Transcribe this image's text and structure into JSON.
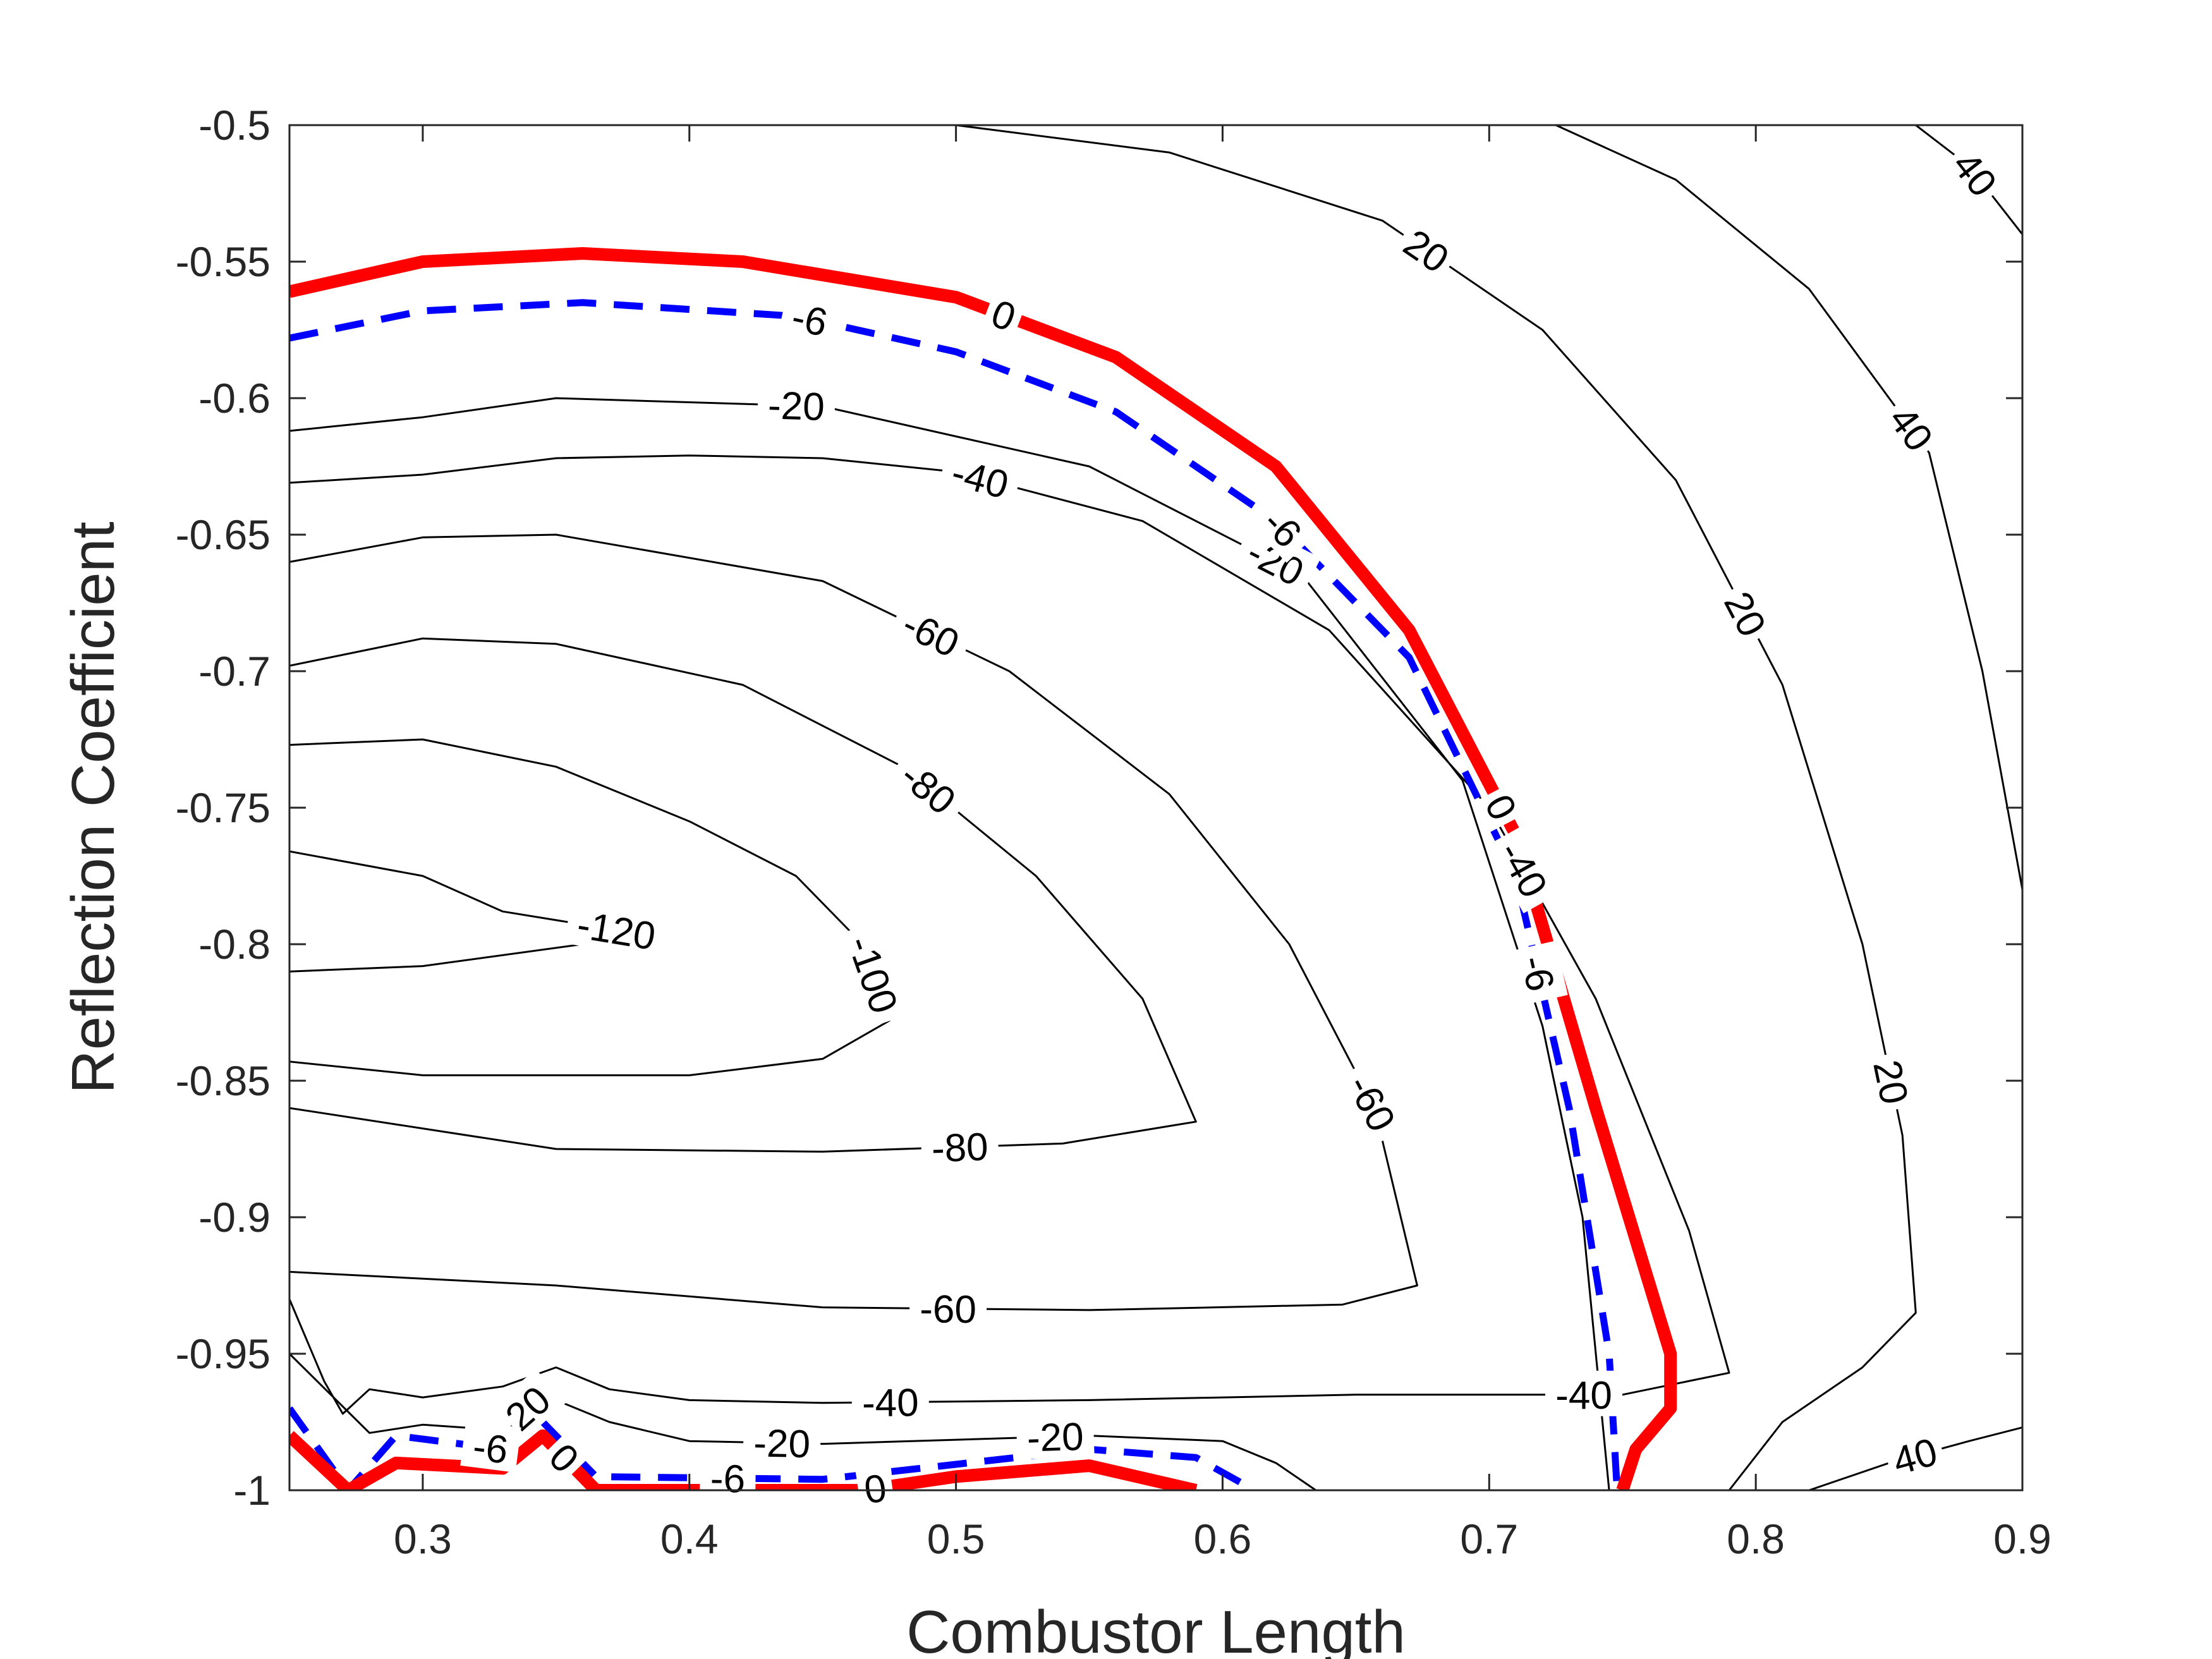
{
  "chart_data": {
    "type": "contour",
    "xlabel": "Combustor Length",
    "ylabel": "Reflection Coefficient",
    "xlim": [
      0.25,
      0.9
    ],
    "ylim": [
      -1,
      -0.5
    ],
    "xticks": [
      "0.3",
      "0.4",
      "0.5",
      "0.6",
      "0.7",
      "0.8",
      "0.9"
    ],
    "yticks": [
      "-0.5",
      "-0.55",
      "-0.6",
      "-0.65",
      "-0.7",
      "-0.75",
      "-0.8",
      "-0.85",
      "-0.9",
      "-0.95",
      "-1"
    ],
    "grid": false,
    "colors": {
      "default": "#000000",
      "zero": "#ff0000",
      "minus6": "#0000ff"
    },
    "contours": [
      {
        "level": -120,
        "style": "thin",
        "labels": [
          "-120"
        ],
        "points": [
          [
            0.25,
            -0.766
          ],
          [
            0.3,
            -0.775
          ],
          [
            0.33,
            -0.788
          ],
          [
            0.374,
            -0.795
          ],
          [
            0.36,
            -0.8
          ],
          [
            0.3,
            -0.808
          ],
          [
            0.25,
            -0.81
          ]
        ]
      },
      {
        "level": -100,
        "style": "thin",
        "labels": [
          "-100"
        ],
        "points": [
          [
            0.25,
            -0.727
          ],
          [
            0.3,
            -0.725
          ],
          [
            0.35,
            -0.735
          ],
          [
            0.4,
            -0.755
          ],
          [
            0.44,
            -0.775
          ],
          [
            0.465,
            -0.8
          ],
          [
            0.475,
            -0.828
          ],
          [
            0.45,
            -0.842
          ],
          [
            0.4,
            -0.848
          ],
          [
            0.3,
            -0.848
          ],
          [
            0.25,
            -0.843
          ]
        ]
      },
      {
        "level": -80,
        "style": "thin",
        "labels": [
          "-80",
          "-80"
        ],
        "points": [
          [
            0.25,
            -0.698
          ],
          [
            0.3,
            -0.688
          ],
          [
            0.35,
            -0.69
          ],
          [
            0.42,
            -0.705
          ],
          [
            0.48,
            -0.735
          ],
          [
            0.53,
            -0.775
          ],
          [
            0.57,
            -0.82
          ],
          [
            0.59,
            -0.865
          ],
          [
            0.54,
            -0.873
          ],
          [
            0.45,
            -0.876
          ],
          [
            0.35,
            -0.875
          ],
          [
            0.25,
            -0.86
          ]
        ]
      },
      {
        "level": -60,
        "style": "thin",
        "labels": [
          "-60",
          "-60",
          "-60"
        ],
        "points": [
          [
            0.25,
            -0.66
          ],
          [
            0.3,
            -0.651
          ],
          [
            0.35,
            -0.65
          ],
          [
            0.45,
            -0.667
          ],
          [
            0.52,
            -0.7
          ],
          [
            0.58,
            -0.745
          ],
          [
            0.625,
            -0.8
          ],
          [
            0.657,
            -0.86
          ],
          [
            0.673,
            -0.925
          ],
          [
            0.645,
            -0.932
          ],
          [
            0.55,
            -0.934
          ],
          [
            0.45,
            -0.933
          ],
          [
            0.35,
            -0.925
          ],
          [
            0.25,
            -0.92
          ]
        ]
      },
      {
        "level": -40,
        "style": "thin",
        "labels": [
          "-40",
          "-40",
          "-40",
          "-40"
        ],
        "points": [
          [
            0.25,
            -0.93
          ],
          [
            0.263,
            -0.96
          ],
          [
            0.27,
            -0.972
          ],
          [
            0.28,
            -0.963
          ],
          [
            0.3,
            -0.966
          ],
          [
            0.33,
            -0.962
          ],
          [
            0.35,
            -0.955
          ],
          [
            0.37,
            -0.963
          ],
          [
            0.4,
            -0.967
          ],
          [
            0.45,
            -0.968
          ],
          [
            0.55,
            -0.967
          ],
          [
            0.65,
            -0.965
          ],
          [
            0.75,
            -0.965
          ],
          [
            0.79,
            -0.957
          ],
          [
            0.775,
            -0.905
          ],
          [
            0.74,
            -0.82
          ],
          [
            0.7,
            -0.75
          ],
          [
            0.64,
            -0.685
          ],
          [
            0.57,
            -0.645
          ],
          [
            0.5,
            -0.627
          ],
          [
            0.45,
            -0.622
          ],
          [
            0.4,
            -0.621
          ],
          [
            0.35,
            -0.622
          ],
          [
            0.3,
            -0.628
          ],
          [
            0.25,
            -0.631
          ]
        ]
      },
      {
        "level": -20,
        "style": "thin",
        "labels": [
          "-20",
          "-20",
          "-20",
          "-20",
          "-20"
        ],
        "points": [
          [
            0.25,
            -0.95
          ],
          [
            0.28,
            -0.979
          ],
          [
            0.3,
            -0.976
          ],
          [
            0.33,
            -0.978
          ],
          [
            0.345,
            -0.965
          ],
          [
            0.37,
            -0.975
          ],
          [
            0.4,
            -0.982
          ],
          [
            0.45,
            -0.983
          ],
          [
            0.55,
            -0.98
          ],
          [
            0.6,
            -0.982
          ],
          [
            0.62,
            -0.99
          ],
          [
            0.635,
            -1.0
          ]
        ],
        "points2": [
          [
            0.25,
            -0.612
          ],
          [
            0.3,
            -0.607
          ],
          [
            0.35,
            -0.6
          ],
          [
            0.45,
            -0.603
          ],
          [
            0.55,
            -0.625
          ],
          [
            0.63,
            -0.665
          ],
          [
            0.69,
            -0.74
          ],
          [
            0.72,
            -0.83
          ],
          [
            0.735,
            -0.9
          ],
          [
            0.745,
            -1.0
          ]
        ]
      },
      {
        "level": -6,
        "style": "dashed-blue",
        "labels": [
          "-6",
          "-6",
          "-6",
          "-6",
          "-6"
        ],
        "points": [
          [
            0.25,
            -0.578
          ],
          [
            0.3,
            -0.568
          ],
          [
            0.36,
            -0.565
          ],
          [
            0.44,
            -0.57
          ],
          [
            0.5,
            -0.583
          ],
          [
            0.56,
            -0.605
          ],
          [
            0.62,
            -0.645
          ],
          [
            0.67,
            -0.695
          ],
          [
            0.71,
            -0.775
          ],
          [
            0.73,
            -0.86
          ],
          [
            0.745,
            -0.95
          ],
          [
            0.748,
            -1.0
          ]
        ],
        "points2": [
          [
            0.25,
            -0.97
          ],
          [
            0.272,
            -1.0
          ],
          [
            0.29,
            -0.98
          ],
          [
            0.33,
            -0.985
          ],
          [
            0.345,
            -0.975
          ],
          [
            0.365,
            -0.995
          ],
          [
            0.45,
            -0.996
          ],
          [
            0.55,
            -0.985
          ],
          [
            0.59,
            -0.988
          ],
          [
            0.612,
            -1.0
          ]
        ]
      },
      {
        "level": 0,
        "style": "bold-red",
        "labels": [
          "0",
          "0",
          "0",
          "0"
        ],
        "points": [
          [
            0.25,
            -0.561
          ],
          [
            0.3,
            -0.55
          ],
          [
            0.36,
            -0.547
          ],
          [
            0.42,
            -0.55
          ],
          [
            0.5,
            -0.563
          ],
          [
            0.56,
            -0.585
          ],
          [
            0.62,
            -0.625
          ],
          [
            0.67,
            -0.685
          ],
          [
            0.71,
            -0.76
          ],
          [
            0.74,
            -0.86
          ],
          [
            0.768,
            -0.95
          ],
          [
            0.768,
            -0.97
          ],
          [
            0.755,
            -0.985
          ],
          [
            0.75,
            -1.0
          ]
        ],
        "points2": [
          [
            0.25,
            -0.98
          ],
          [
            0.272,
            -1.0
          ],
          [
            0.29,
            -0.99
          ],
          [
            0.33,
            -0.992
          ],
          [
            0.345,
            -0.98
          ],
          [
            0.365,
            -1.0
          ],
          [
            0.42,
            -1.0
          ],
          [
            0.465,
            -1.0
          ],
          [
            0.5,
            -0.995
          ],
          [
            0.55,
            -0.991
          ],
          [
            0.59,
            -1.0
          ]
        ]
      },
      {
        "level": 20,
        "style": "thin",
        "labels": [
          "20",
          "20",
          "20"
        ],
        "points": [
          [
            0.5,
            -0.5
          ],
          [
            0.58,
            -0.51
          ],
          [
            0.66,
            -0.535
          ],
          [
            0.72,
            -0.575
          ],
          [
            0.77,
            -0.63
          ],
          [
            0.81,
            -0.705
          ],
          [
            0.84,
            -0.8
          ],
          [
            0.855,
            -0.87
          ],
          [
            0.86,
            -0.935
          ],
          [
            0.84,
            -0.955
          ],
          [
            0.81,
            -0.975
          ],
          [
            0.79,
            -1.0
          ]
        ]
      },
      {
        "level": 40,
        "style": "thin",
        "labels": [
          "40",
          "40",
          "40"
        ],
        "points": [
          [
            0.725,
            -0.5
          ],
          [
            0.77,
            -0.52
          ],
          [
            0.82,
            -0.56
          ],
          [
            0.865,
            -0.62
          ],
          [
            0.885,
            -0.7
          ],
          [
            0.9,
            -0.78
          ]
        ],
        "points2": [
          [
            0.82,
            -1.0
          ],
          [
            0.85,
            -0.99
          ],
          [
            0.88,
            -0.982
          ],
          [
            0.9,
            -0.977
          ]
        ],
        "points3": [
          [
            0.86,
            -0.5
          ],
          [
            0.88,
            -0.515
          ],
          [
            0.9,
            -0.54
          ]
        ]
      }
    ]
  }
}
